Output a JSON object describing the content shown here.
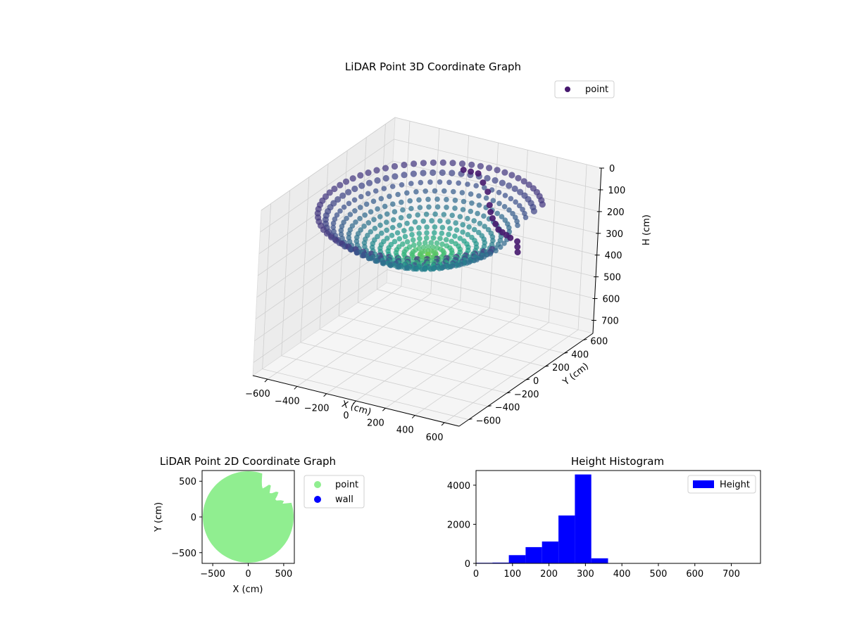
{
  "chart_data": [
    {
      "type": "scatter",
      "title": "LiDAR Point 3D Coordinate Graph",
      "xlabel": "X (cm)",
      "ylabel": "Y (cm)",
      "zlabel": "H (cm)",
      "xlim": [
        -700,
        700
      ],
      "ylim": [
        -700,
        700
      ],
      "zlim": [
        0,
        760
      ],
      "z_inverted": true,
      "x_ticks": [
        "−600",
        "−400",
        "−200",
        "0",
        "200",
        "400",
        "600"
      ],
      "y_ticks": [
        "−600",
        "−400",
        "−200",
        "0",
        "200",
        "400",
        "600"
      ],
      "z_ticks": [
        "0",
        "100",
        "200",
        "300",
        "400",
        "500",
        "600",
        "700"
      ],
      "grid": true,
      "legend": {
        "position": "top-right",
        "entries": [
          {
            "label": "point",
            "color": "#46186e"
          }
        ]
      },
      "colormap": "viridis",
      "description_of_data": {
        "shape": "bowl",
        "rim_radius": 640,
        "rim_height": 100,
        "center_height": 300,
        "points_per_ring": 60,
        "rings": 14
      },
      "dark_cluster": [
        {
          "x": -100,
          "y": 500,
          "h": 80
        },
        {
          "x": -50,
          "y": 500,
          "h": 80
        },
        {
          "x": 0,
          "y": 500,
          "h": 80
        },
        {
          "x": 60,
          "y": 460,
          "h": 100
        },
        {
          "x": 120,
          "y": 420,
          "h": 120
        },
        {
          "x": 180,
          "y": 350,
          "h": 150
        },
        {
          "x": 220,
          "y": 300,
          "h": 160
        },
        {
          "x": 260,
          "y": 260,
          "h": 170
        },
        {
          "x": 300,
          "y": 230,
          "h": 180
        },
        {
          "x": 340,
          "y": 200,
          "h": 190
        },
        {
          "x": 380,
          "y": 180,
          "h": 190
        },
        {
          "x": 420,
          "y": 160,
          "h": 190
        },
        {
          "x": 460,
          "y": 140,
          "h": 190
        },
        {
          "x": 520,
          "y": 120,
          "h": 190
        },
        {
          "x": 560,
          "y": 60,
          "h": 190
        },
        {
          "x": 600,
          "y": 0,
          "h": 190
        }
      ]
    },
    {
      "type": "scatter",
      "title": "LiDAR Point 2D Coordinate Graph",
      "xlabel": "X (cm)",
      "ylabel": "Y (cm)",
      "xlim": [
        -650,
        650
      ],
      "ylim": [
        -650,
        650
      ],
      "x_ticks": [
        -500,
        0,
        500
      ],
      "y_ticks": [
        500,
        0,
        -500
      ],
      "legend": {
        "position": "outside-right",
        "entries": [
          {
            "label": "point",
            "color": "#90ee90"
          },
          {
            "label": "wall",
            "color": "#0000ff"
          }
        ]
      },
      "point_region_radius": 640
    },
    {
      "type": "bar",
      "title": "Height Histogram",
      "xlim": [
        0,
        780
      ],
      "ylim": [
        0,
        4750
      ],
      "x_ticks": [
        0,
        100,
        200,
        300,
        400,
        500,
        600,
        700
      ],
      "y_ticks": [
        0,
        2000,
        4000
      ],
      "legend": {
        "position": "top-right",
        "entries": [
          {
            "label": "Height",
            "color": "#0000ff"
          }
        ]
      },
      "bins": [
        {
          "from": 0,
          "to": 45,
          "count": 30
        },
        {
          "from": 45,
          "to": 90,
          "count": 40
        },
        {
          "from": 90,
          "to": 136,
          "count": 420
        },
        {
          "from": 136,
          "to": 181,
          "count": 830
        },
        {
          "from": 181,
          "to": 226,
          "count": 1120
        },
        {
          "from": 226,
          "to": 271,
          "count": 2450
        },
        {
          "from": 271,
          "to": 316,
          "count": 4550
        },
        {
          "from": 316,
          "to": 362,
          "count": 260
        },
        {
          "from": 362,
          "to": 780,
          "count": 10
        }
      ]
    }
  ]
}
